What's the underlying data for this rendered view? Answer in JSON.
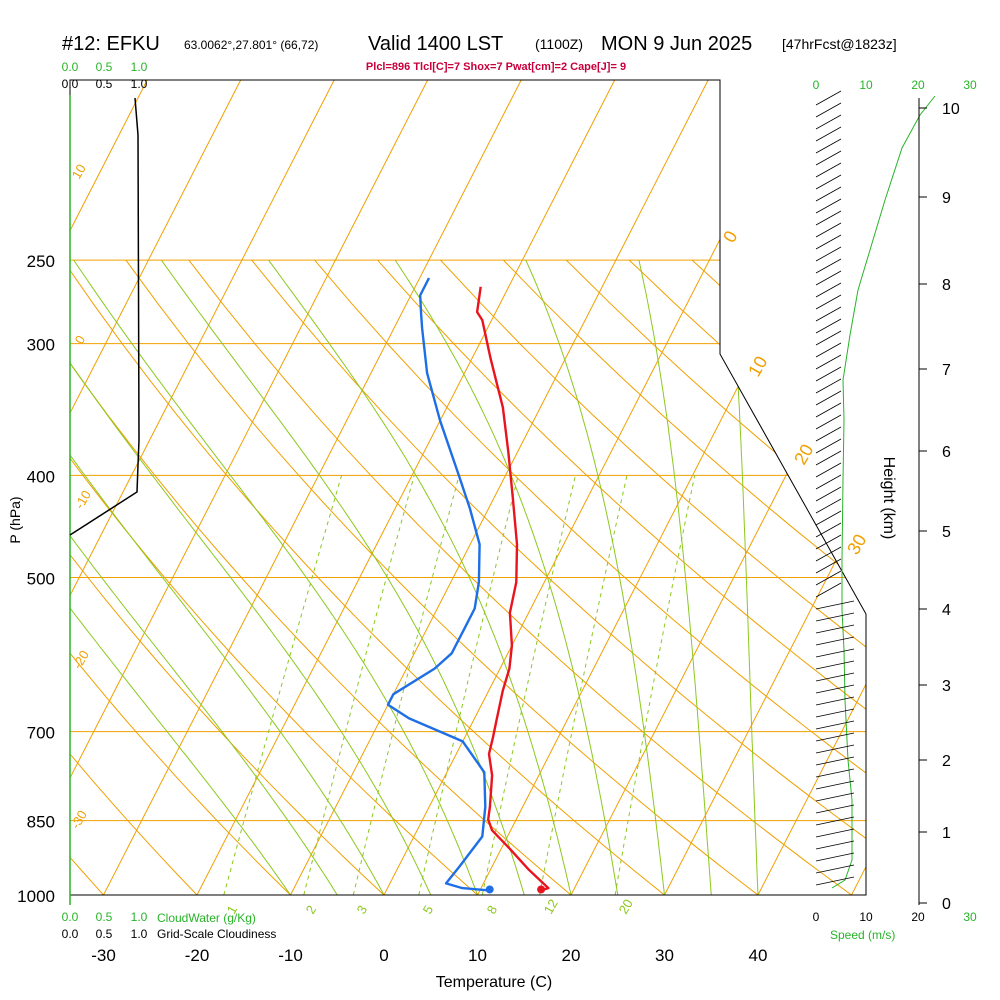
{
  "header": {
    "station": "#12: EFKU",
    "coords": "63.0062°,27.801° (66,72)",
    "valid": "Valid 1400 LST",
    "zulu": "(1100Z)",
    "date": "MON 9 Jun 2025",
    "forecast": "[47hrFcst@1823z]",
    "indices": "Plcl=896 Tlcl[C]=7 Shox=7 Pwat[cm]=2 Cape[J]= 9"
  },
  "colors": {
    "temperature": "#e8141e",
    "dewpoint": "#1e6ee6",
    "isotherm": "#f0a000",
    "dry_adiabat": "#f0a000",
    "moist_adiabat": "#8cc81e",
    "mixing_ratio": "#8cc81e",
    "green_label": "#28b428",
    "indices": "#c8003c",
    "axis": "#000000"
  },
  "chart_data": {
    "type": "line",
    "title": "#12: EFKU",
    "xlabel": "Temperature (C)",
    "ylabel": "P (hPa)",
    "right_label": "Height (km)",
    "x_ticks": [
      -30,
      -20,
      -10,
      0,
      10,
      20,
      30,
      40
    ],
    "p_ticks": [
      250,
      300,
      400,
      500,
      700,
      850,
      1000
    ],
    "height_ticks": [
      0,
      1,
      2,
      3,
      4,
      5,
      6,
      7,
      8,
      9,
      10
    ],
    "isotherm_labels": [
      "10",
      "0",
      "-10",
      "-20",
      "-30",
      "0",
      "10",
      "20",
      "30"
    ],
    "mixing_ratio_labels": [
      "1",
      "2",
      "3",
      "5",
      "8",
      "12",
      "20"
    ],
    "cloud_scale_top": [
      "0.0",
      "0.5",
      "1.0"
    ],
    "cloud_scale_black": [
      "0.0",
      "0.5",
      "1.0"
    ],
    "cloud_water_label": "CloudWater (g/Kg)",
    "cloudiness_label": "Grid-Scale Cloudiness",
    "speed_ticks_green": [
      "0",
      "10",
      "20",
      "30"
    ],
    "speed_ticks_black": [
      "0",
      "10",
      "20",
      "30"
    ],
    "speed_label": "Speed (m/s)",
    "series": [
      {
        "name": "Temperature",
        "points": [
          [
            16.5,
            990
          ],
          [
            17.2,
            985
          ],
          [
            14,
            945
          ],
          [
            11,
            905
          ],
          [
            8,
            868
          ],
          [
            7,
            848
          ],
          [
            6.5,
            825
          ],
          [
            5,
            770
          ],
          [
            3.5,
            735
          ],
          [
            3,
            708
          ],
          [
            2.5,
            685
          ],
          [
            1.5,
            640
          ],
          [
            1,
            610
          ],
          [
            0,
            580
          ],
          [
            -2,
            540
          ],
          [
            -3,
            505
          ],
          [
            -5,
            465
          ],
          [
            -8,
            420
          ],
          [
            -11,
            380
          ],
          [
            -14,
            345
          ],
          [
            -18,
            310
          ],
          [
            -21,
            285
          ],
          [
            -22,
            280
          ],
          [
            -23,
            265
          ]
        ]
      },
      {
        "name": "Dewpoint",
        "points": [
          [
            11,
            990
          ],
          [
            8,
            985
          ],
          [
            6,
            975
          ],
          [
            6.5,
            940
          ],
          [
            7.3,
            880
          ],
          [
            6.6,
            850
          ],
          [
            6,
            825
          ],
          [
            4,
            765
          ],
          [
            0,
            715
          ],
          [
            -7,
            680
          ],
          [
            -10,
            660
          ],
          [
            -10,
            645
          ],
          [
            -7,
            610
          ],
          [
            -6,
            590
          ],
          [
            -6,
            560
          ],
          [
            -6,
            535
          ],
          [
            -7,
            505
          ],
          [
            -9,
            465
          ],
          [
            -12,
            430
          ],
          [
            -15,
            400
          ],
          [
            -20,
            355
          ],
          [
            -24,
            320
          ],
          [
            -27,
            290
          ],
          [
            -28,
            280
          ],
          [
            -29,
            270
          ],
          [
            -29,
            260
          ]
        ]
      }
    ],
    "surface_temperature": 16.5,
    "surface_dewpoint": 11,
    "grid": true
  }
}
